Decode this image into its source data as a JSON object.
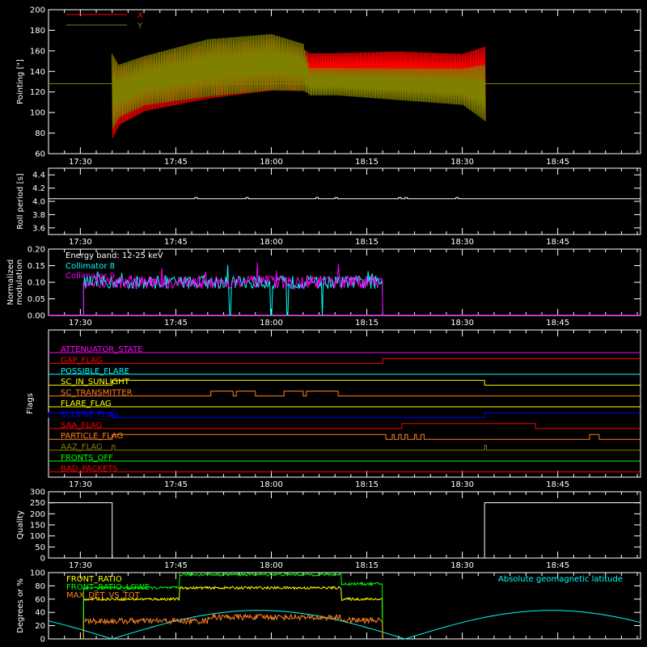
{
  "colors": {
    "background": "#000000",
    "axis": "#ffffff",
    "red": "#ff0000",
    "olive": "#808000",
    "cyan": "#00ffff",
    "magenta": "#ff00ff",
    "green": "#00ff00",
    "yellow": "#ffff00",
    "orange": "#ff8020",
    "blue": "#0000ff",
    "white": "#ffffff"
  },
  "chart_data": [
    {
      "type": "area",
      "ylabel": "Pointing [\"]",
      "ylim": [
        60,
        200
      ],
      "yticks": [
        60,
        80,
        100,
        120,
        140,
        160,
        180,
        200
      ],
      "xticks": [
        "17:30",
        "17:45",
        "18:00",
        "18:15",
        "18:30",
        "18:45"
      ],
      "legend": [
        "X",
        "Y"
      ],
      "series": [
        {
          "name": "X",
          "color": "red",
          "envelope": {
            "t_minutes": [
              35,
              36,
              40,
              50,
              60,
              65,
              66,
              70,
              80,
              90,
              93.5
            ],
            "max": [
              160,
              148,
              155,
              170,
              175,
              165,
              160,
              160,
              162,
              160,
              168
            ],
            "min": [
              70,
              84,
              98,
              110,
              118,
              118,
              120,
              122,
              118,
              110,
              100
            ]
          }
        },
        {
          "name": "Y",
          "color": "olive",
          "envelope": {
            "t_minutes": [
              35,
              36,
              40,
              50,
              60,
              65,
              66,
              70,
              80,
              90,
              93.5
            ],
            "max": [
              162,
              150,
              158,
              175,
              180,
              170,
              145,
              145,
              145,
              145,
              150
            ],
            "min": [
              80,
              92,
              104,
              112,
              118,
              118,
              115,
              115,
              110,
              105,
              88
            ]
          }
        }
      ],
      "baseline": 128
    },
    {
      "type": "line",
      "ylabel": "Roll period [s]",
      "ylim": [
        3.5,
        4.5
      ],
      "yticks": [
        3.6,
        3.8,
        4.0,
        4.2,
        4.4
      ],
      "xticks": [
        "17:30",
        "17:45",
        "18:00",
        "18:15",
        "18:30",
        "18:45"
      ],
      "value": 4.04
    },
    {
      "type": "line",
      "ylabel": "Normalized modulation",
      "ylim": [
        0,
        0.2
      ],
      "yticks": [
        0.0,
        0.05,
        0.1,
        0.15,
        0.2
      ],
      "xticks": [
        "17:30",
        "17:45",
        "18:00",
        "18:15",
        "18:30",
        "18:45"
      ],
      "annotations": [
        "Energy band: 12-25 keV"
      ],
      "series": [
        {
          "name": "Collimator 8",
          "color": "cyan",
          "mean": 0.1,
          "t_range": [
            30.5,
            77.5
          ],
          "dropouts": [
            53.5,
            60,
            62.5,
            68
          ]
        },
        {
          "name": "Collimator 9",
          "color": "magenta",
          "mean": 0.1,
          "t_range": [
            30.5,
            77.5
          ]
        }
      ]
    },
    {
      "type": "line",
      "ylabel": "Flags",
      "xticks": [
        "17:30",
        "17:45",
        "18:00",
        "18:15",
        "18:30",
        "18:45"
      ],
      "flags": [
        {
          "name": "ATTENUATOR_STATE",
          "color": "magenta",
          "steps": []
        },
        {
          "name": "GAP_FLAG",
          "color": "red",
          "steps": [
            [
              77.5,
              1
            ]
          ]
        },
        {
          "name": "POSSIBLE_FLARE",
          "color": "cyan",
          "steps": []
        },
        {
          "name": "SC_IN_SUNLIGHT",
          "color": "yellow",
          "steps": [
            [
              35,
              1
            ],
            [
              93.5,
              0
            ]
          ]
        },
        {
          "name": "SC_TRANSMITTER",
          "color": "orange",
          "steps": [
            [
              50.5,
              1
            ],
            [
              54,
              0
            ],
            [
              54.5,
              1
            ],
            [
              57.5,
              0
            ],
            [
              62,
              1
            ],
            [
              65,
              0
            ],
            [
              65.5,
              1
            ],
            [
              70.5,
              0
            ]
          ]
        },
        {
          "name": "FLARE_FLAG",
          "color": "yellow",
          "steps": []
        },
        {
          "name": "ECLIPSE_FLAG",
          "color": "blue",
          "steps": [
            [
              0,
              1
            ],
            [
              35,
              0
            ],
            [
              93.5,
              1
            ]
          ]
        },
        {
          "name": "SAA_FLAG",
          "color": "red",
          "steps": [
            [
              80.5,
              1
            ],
            [
              101.5,
              0
            ]
          ]
        },
        {
          "name": "PARTICLE_FLAG",
          "color": "orange",
          "steps": [
            [
              35,
              1
            ],
            [
              78,
              0
            ],
            [
              79,
              1
            ],
            [
              79.3,
              0
            ],
            [
              80,
              1
            ],
            [
              80.4,
              0
            ],
            [
              81,
              1
            ],
            [
              81.4,
              0
            ],
            [
              82.5,
              1
            ],
            [
              82.8,
              0
            ],
            [
              83.5,
              1
            ],
            [
              84,
              0
            ],
            [
              110,
              1
            ],
            [
              111.5,
              0
            ]
          ]
        },
        {
          "name": "AAZ_FLAG",
          "color": "olive",
          "steps": [
            [
              35,
              1
            ],
            [
              35.4,
              0
            ],
            [
              93.5,
              1
            ],
            [
              93.8,
              0
            ]
          ]
        },
        {
          "name": "FRONTS_OFF",
          "color": "green",
          "steps": []
        },
        {
          "name": "BAD_PACKETS",
          "color": "red",
          "steps": []
        }
      ]
    },
    {
      "type": "line",
      "ylabel": "Quality",
      "ylim": [
        0,
        300
      ],
      "yticks": [
        0,
        50,
        100,
        150,
        200,
        250,
        300
      ],
      "xticks": [
        "17:30",
        "17:45",
        "18:00",
        "18:15",
        "18:30",
        "18:45"
      ],
      "steps": [
        [
          0,
          250
        ],
        [
          35,
          0
        ],
        [
          93.5,
          250
        ]
      ]
    },
    {
      "type": "line",
      "ylabel": "Degrees or %",
      "ylim": [
        0,
        100
      ],
      "yticks": [
        0,
        20,
        40,
        60,
        80,
        100
      ],
      "annotations": [
        "Absolute geomagnetic latitude"
      ],
      "series": [
        {
          "name": "FRONT_RATIO",
          "color": "yellow",
          "t_range": [
            30.5,
            77.5
          ],
          "levels": [
            [
              30.5,
              60
            ],
            [
              45.5,
              77
            ],
            [
              71,
              60
            ]
          ]
        },
        {
          "name": "FRONT_RATIO_LOWE",
          "color": "green",
          "t_range": [
            30.5,
            77.5
          ],
          "levels": [
            [
              30.5,
              77
            ],
            [
              45.5,
              97
            ],
            [
              71,
              83
            ]
          ]
        },
        {
          "name": "MAX_DET_VS_TOT",
          "color": "orange",
          "t_range": [
            30.5,
            77.5
          ],
          "levels": [
            [
              30.5,
              27
            ],
            [
              50,
              33
            ],
            [
              65,
              32
            ],
            [
              71,
              28
            ]
          ]
        },
        {
          "name": "Absolute geomagnetic latitude",
          "color": "cyan",
          "note": "wave ~0-43 deg, minima near 17:35 and 18:21, maxima near 17:58 and 18:49"
        }
      ]
    }
  ]
}
